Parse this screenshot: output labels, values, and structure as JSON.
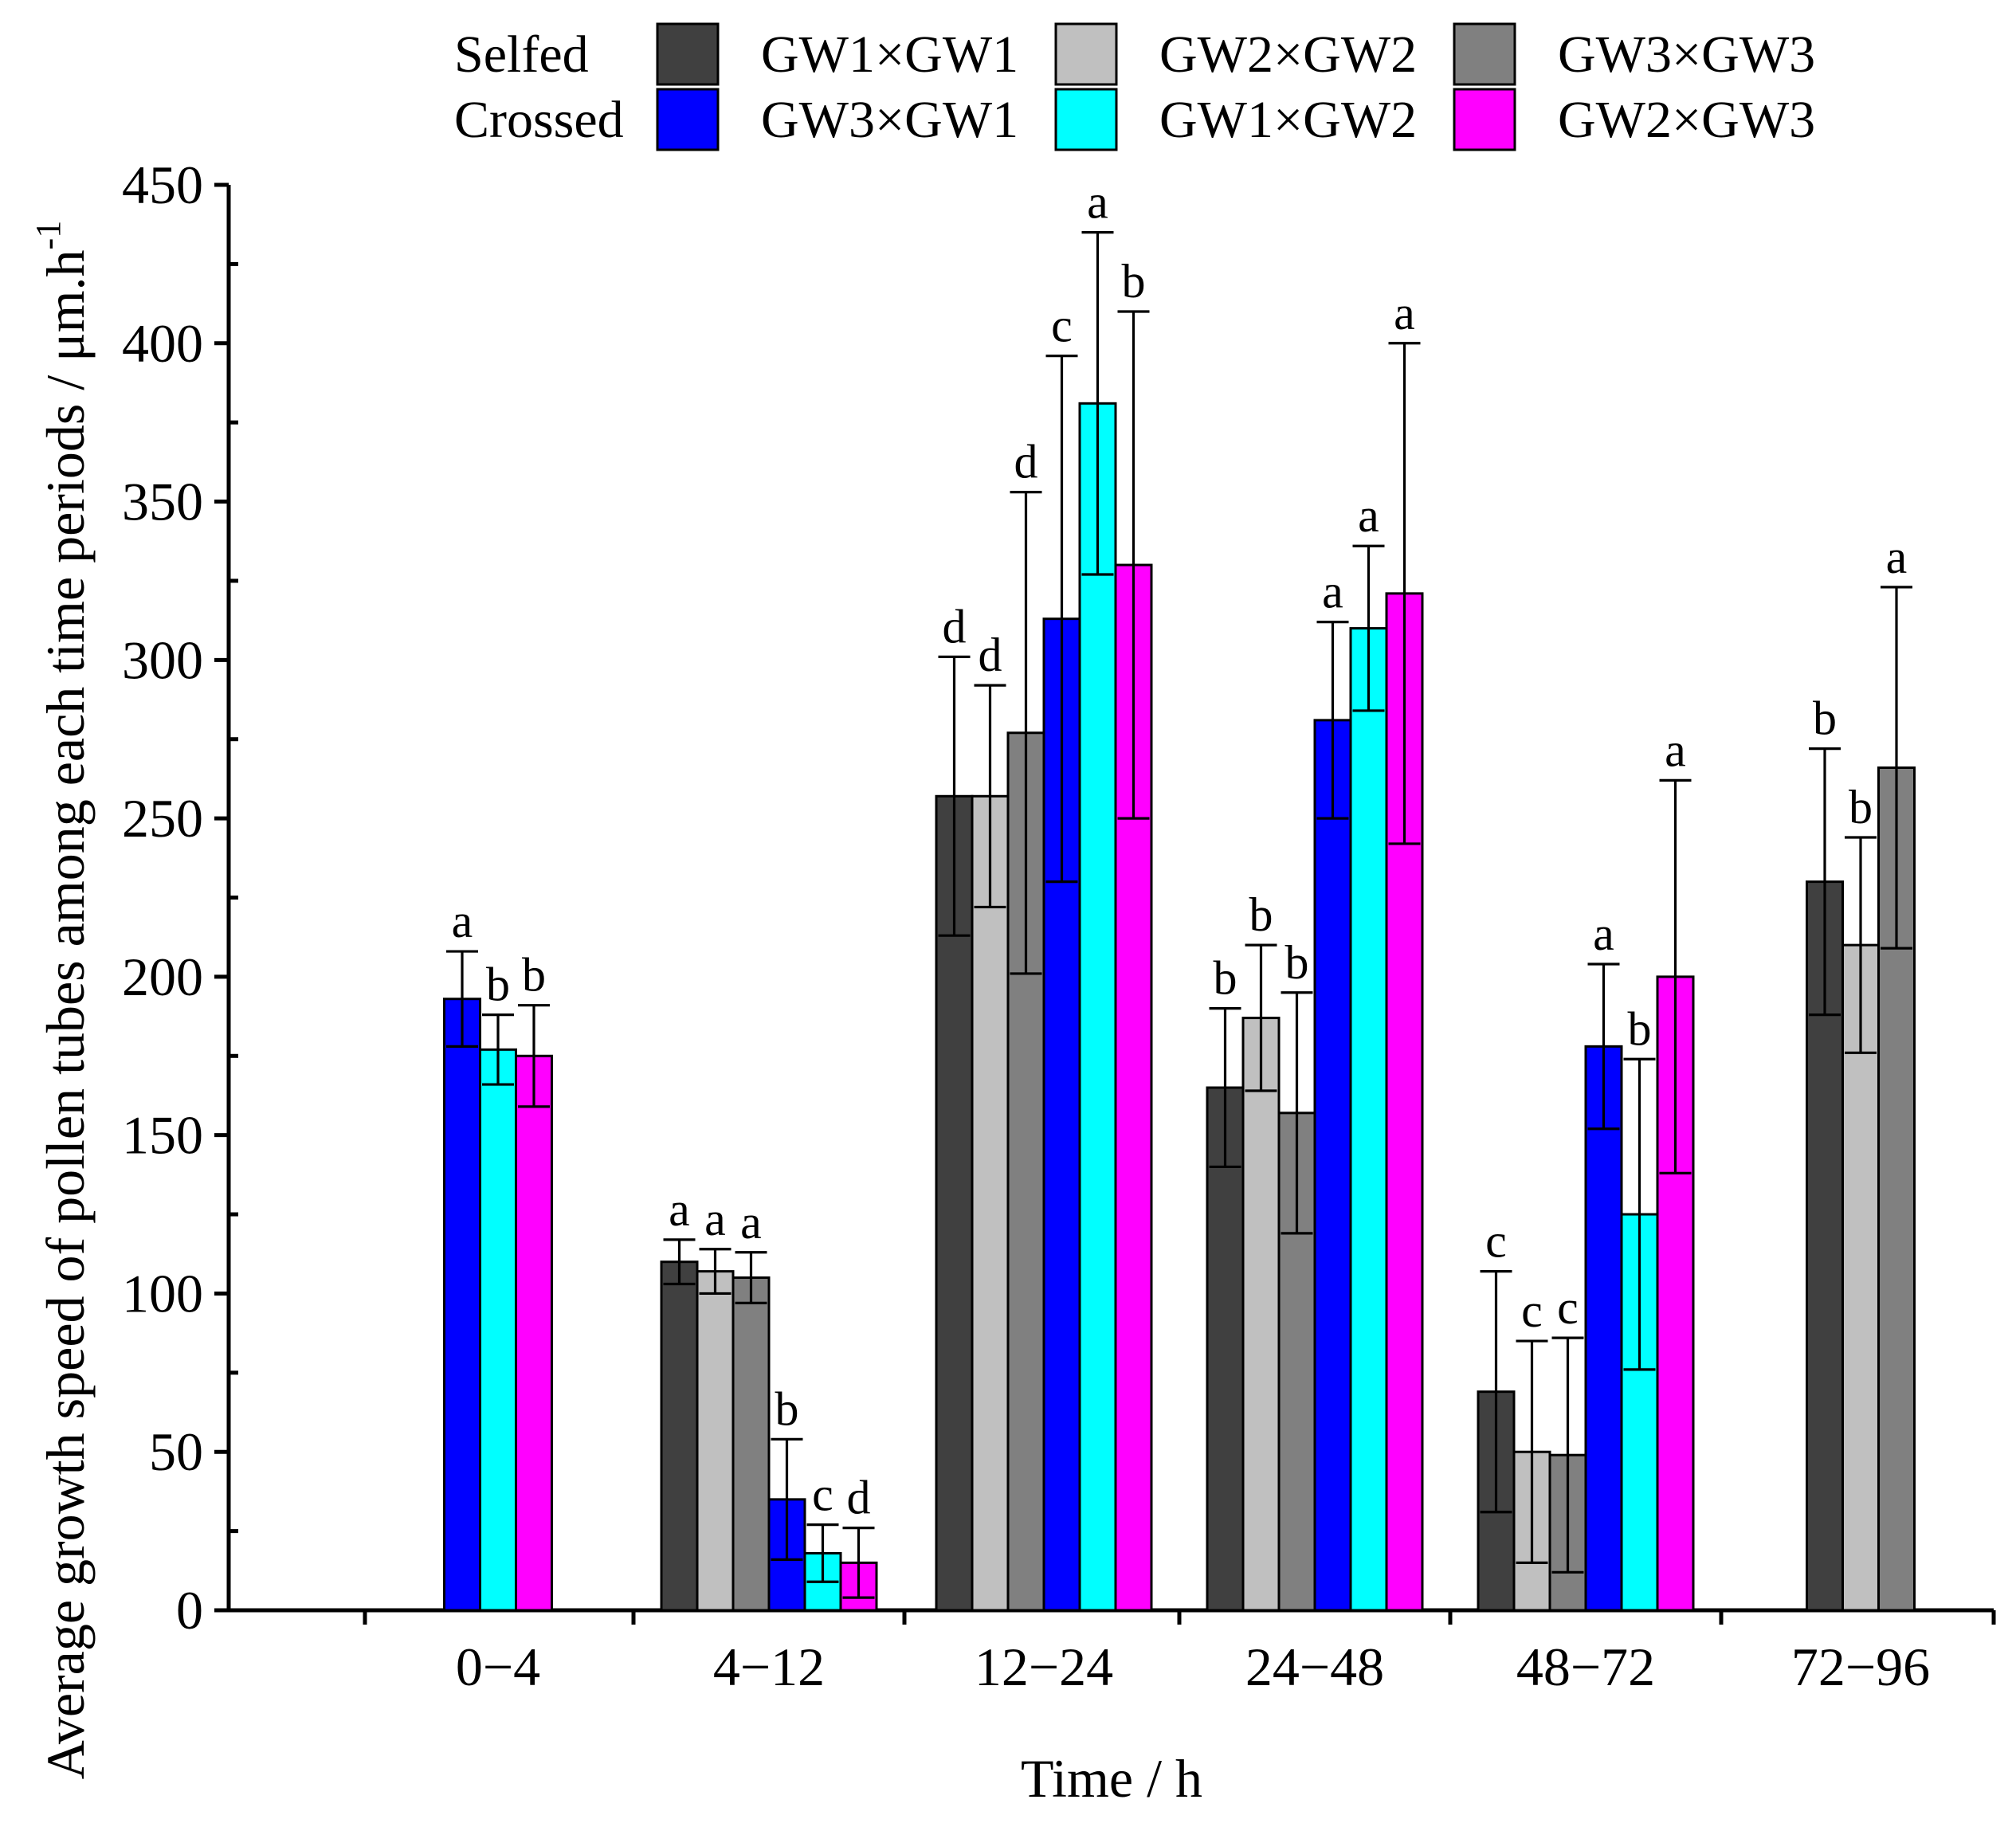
{
  "chart_data": {
    "type": "bar",
    "xlabel": "Time  / h",
    "ylabel": "Average growth speed of  pollen tubes among each time periods  / μm.h",
    "ylabel_superscript": "-1",
    "ylim": [
      0,
      450
    ],
    "yticks": [
      0,
      50,
      100,
      150,
      200,
      250,
      300,
      350,
      400,
      450
    ],
    "categories": [
      "0−4",
      "4−12",
      "12−24",
      "24−48",
      "48−72",
      "72−96"
    ],
    "legend": {
      "placement": "top",
      "group_labels": [
        "Selfed",
        "Crossed"
      ]
    },
    "series": [
      {
        "name": "GW1×GW1",
        "group": "Selfed",
        "color": "#404040",
        "values": [
          null,
          110,
          257,
          165,
          69,
          230
        ],
        "errors": [
          null,
          7,
          44,
          25,
          38,
          42
        ],
        "letters": [
          null,
          "a",
          "d",
          "b",
          "c",
          "b"
        ]
      },
      {
        "name": "GW2×GW2",
        "group": "Selfed",
        "color": "#c0c0c0",
        "values": [
          null,
          107,
          257,
          187,
          50,
          210
        ],
        "errors": [
          null,
          7,
          35,
          23,
          35,
          34
        ],
        "letters": [
          null,
          "a",
          "d",
          "b",
          "c",
          "b"
        ]
      },
      {
        "name": "GW3×GW3",
        "group": "Selfed",
        "color": "#808080",
        "values": [
          null,
          105,
          277,
          157,
          49,
          266
        ],
        "errors": [
          null,
          8,
          76,
          38,
          37,
          57
        ],
        "letters": [
          null,
          "a",
          "d",
          "b",
          "c",
          "a"
        ]
      },
      {
        "name": "GW3×GW1",
        "group": "Crossed",
        "color": "#0000ff",
        "values": [
          193,
          35,
          313,
          281,
          178,
          null
        ],
        "errors": [
          15,
          19,
          83,
          31,
          26,
          null
        ],
        "letters": [
          "a",
          "b",
          "c",
          "a",
          "a",
          null
        ]
      },
      {
        "name": "GW1×GW2",
        "group": "Crossed",
        "color": "#00ffff",
        "values": [
          177,
          18,
          381,
          310,
          125,
          null
        ],
        "errors": [
          11,
          9,
          54,
          26,
          49,
          null
        ],
        "letters": [
          "b",
          "c",
          "a",
          "a",
          "b",
          null
        ]
      },
      {
        "name": "GW2×GW3",
        "group": "Crossed",
        "color": "#ff00ff",
        "values": [
          175,
          15,
          330,
          321,
          200,
          null
        ],
        "errors": [
          16,
          11,
          80,
          79,
          62,
          null
        ],
        "letters": [
          "b",
          "d",
          "b",
          "a",
          "a",
          null
        ]
      }
    ]
  }
}
